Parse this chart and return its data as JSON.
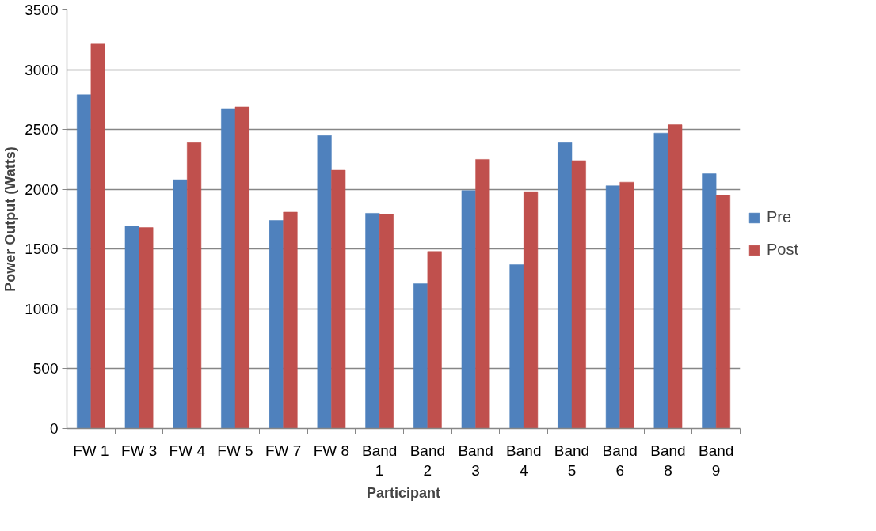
{
  "chart_data": {
    "type": "bar",
    "xlabel": "Participant",
    "ylabel": "Power Output (Watts)",
    "categories": [
      "FW 1",
      "FW 3",
      "FW 4",
      "FW 5",
      "FW 7",
      "FW 8",
      "Band 1",
      "Band 2",
      "Band 3",
      "Band 4",
      "Band 5",
      "Band 6",
      "Band 8",
      "Band 9"
    ],
    "series": [
      {
        "name": "Pre",
        "color": "#4f81bd",
        "values": [
          2790,
          1690,
          2080,
          2670,
          1740,
          2450,
          1800,
          1210,
          1990,
          1370,
          2390,
          2030,
          2470,
          2130
        ]
      },
      {
        "name": "Post",
        "color": "#c0504d",
        "values": [
          3220,
          1680,
          2390,
          2690,
          1810,
          2160,
          1790,
          1480,
          2250,
          1980,
          2240,
          2060,
          2540,
          1950
        ]
      }
    ],
    "ylim": [
      0,
      3500
    ],
    "yticks": [
      0,
      500,
      1000,
      1500,
      2000,
      2500,
      3000,
      3500
    ],
    "grid": "y",
    "legend": "right"
  }
}
